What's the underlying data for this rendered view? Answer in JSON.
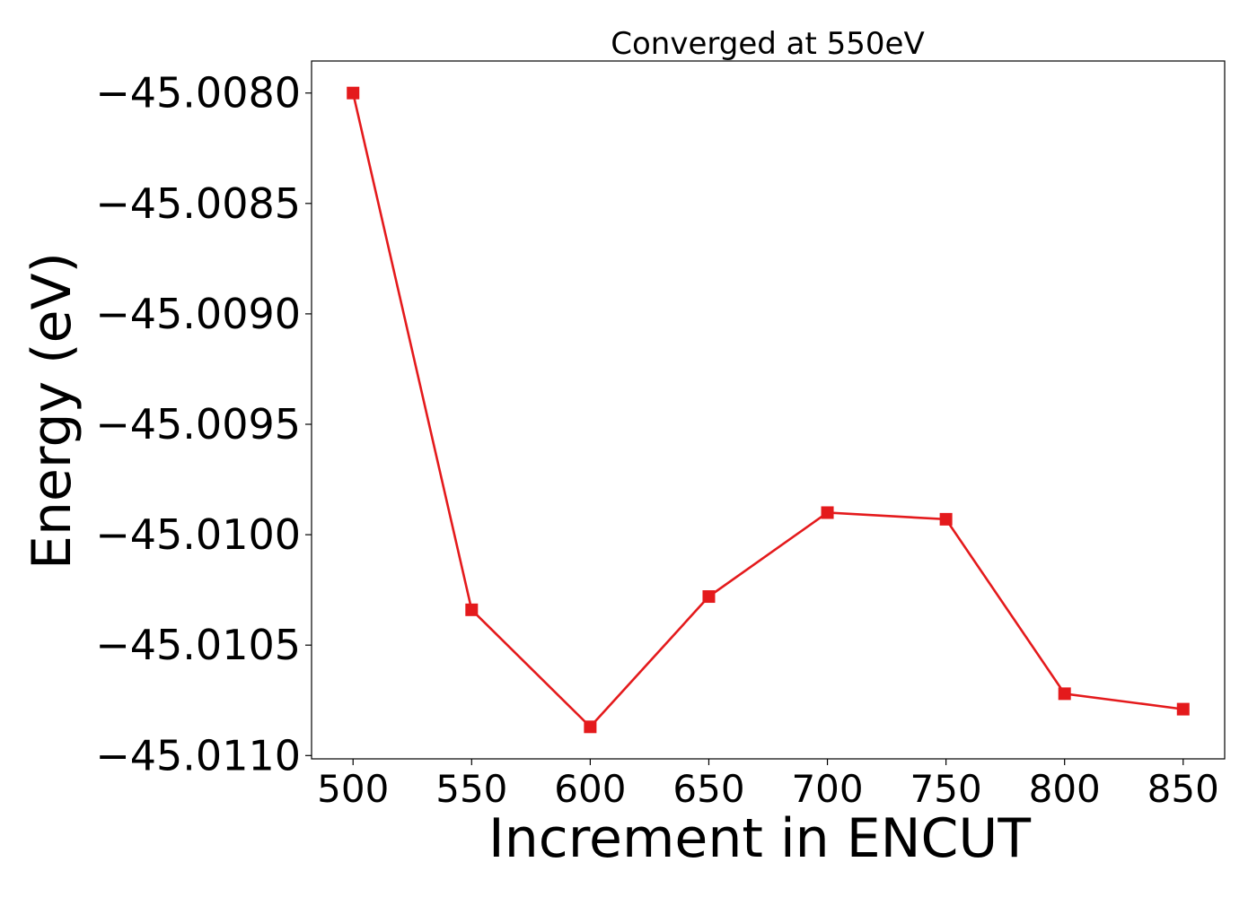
{
  "chart_data": {
    "type": "line",
    "title": "Converged at 550eV",
    "xlabel": "Increment in ENCUT",
    "ylabel": "Energy (eV)",
    "x": [
      500,
      550,
      600,
      650,
      700,
      750,
      800,
      850
    ],
    "series": [
      {
        "values": [
          -45.008,
          -45.01034,
          -45.01087,
          -45.01028,
          -45.0099,
          -45.00993,
          -45.01072,
          -45.01079
        ],
        "color": "#e41a1c",
        "marker": "square"
      }
    ],
    "xticks": [
      500,
      550,
      600,
      650,
      700,
      750,
      800,
      850
    ],
    "xtick_labels": [
      "500",
      "550",
      "600",
      "650",
      "700",
      "750",
      "800",
      "850"
    ],
    "yticks": [
      -45.008,
      -45.0085,
      -45.009,
      -45.0095,
      -45.01,
      -45.0105,
      -45.011
    ],
    "ytick_labels": [
      "−45.0080",
      "−45.0085",
      "−45.0090",
      "−45.0095",
      "−45.0100",
      "−45.0105",
      "−45.0110"
    ],
    "xlim": [
      482.5,
      867.5
    ],
    "ylim": [
      -45.011015,
      -45.007855
    ],
    "grid": false,
    "legend": false
  }
}
